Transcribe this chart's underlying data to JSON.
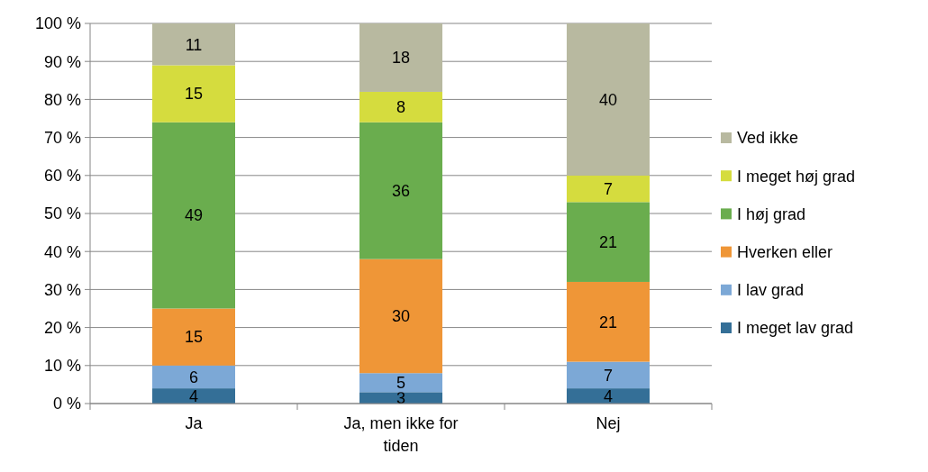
{
  "chart_data": {
    "type": "bar",
    "stacked": true,
    "categories": [
      "Ja",
      "Ja, men ikke for tiden",
      "Nej"
    ],
    "series": [
      {
        "name": "I meget lav grad",
        "color": "#346f97",
        "values": [
          4,
          3,
          4
        ]
      },
      {
        "name": "I lav grad",
        "color": "#7ca8d6",
        "values": [
          6,
          5,
          7
        ]
      },
      {
        "name": "Hverken eller",
        "color": "#ef9637",
        "values": [
          15,
          30,
          21
        ]
      },
      {
        "name": "I høj grad",
        "color": "#6aad4e",
        "values": [
          49,
          36,
          21
        ]
      },
      {
        "name": "I meget høj grad",
        "color": "#d5dc3e",
        "values": [
          15,
          8,
          7
        ]
      },
      {
        "name": "Ved ikke",
        "color": "#b8b9a0",
        "values": [
          11,
          18,
          40
        ]
      }
    ],
    "ylim": [
      0,
      100
    ],
    "yticks": [
      {
        "value": 0,
        "label": "0 %"
      },
      {
        "value": 10,
        "label": "10 %"
      },
      {
        "value": 20,
        "label": "20 %"
      },
      {
        "value": 30,
        "label": "30 %"
      },
      {
        "value": 40,
        "label": "40 %"
      },
      {
        "value": 50,
        "label": "50 %"
      },
      {
        "value": 60,
        "label": "60 %"
      },
      {
        "value": 70,
        "label": "70 %"
      },
      {
        "value": 80,
        "label": "80 %"
      },
      {
        "value": 90,
        "label": "90 %"
      },
      {
        "value": 100,
        "label": "100 %"
      }
    ],
    "grid": "y",
    "legend": "right",
    "data_labels": true
  }
}
